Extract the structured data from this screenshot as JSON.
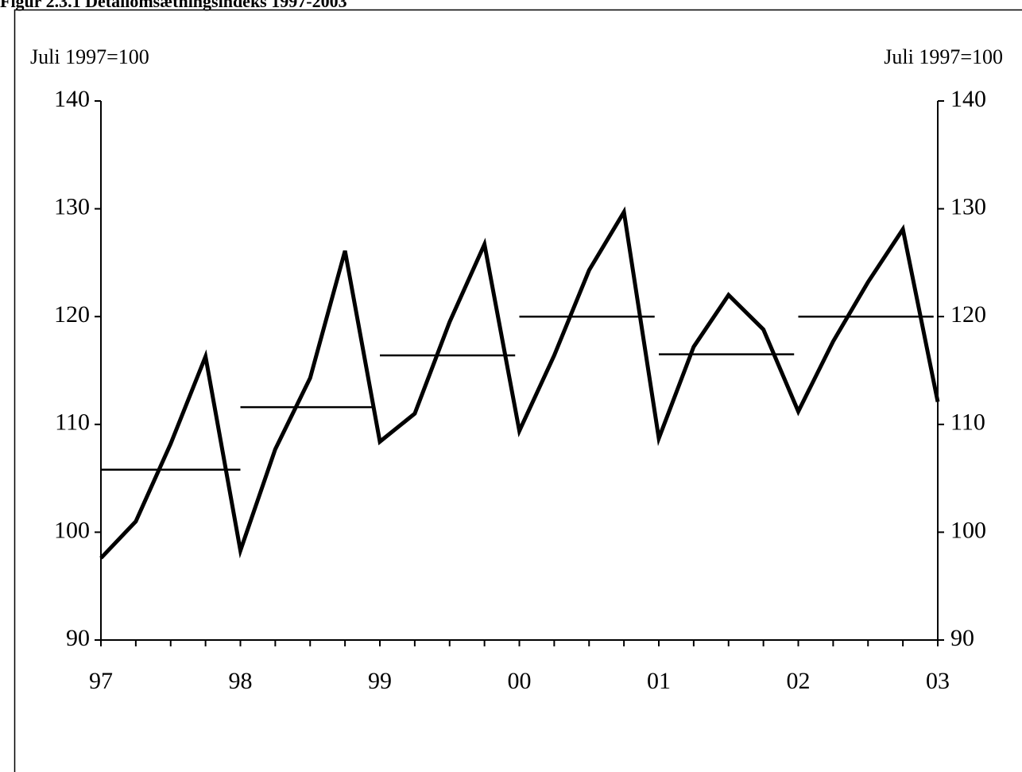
{
  "chart_data": {
    "type": "line",
    "title": "Figur 2.3.1 Detailomsætningsindeks 1997-2003",
    "y_label": "Juli 1997=100",
    "y2_label": "Juli 1997=100",
    "x": [
      1997,
      1997.25,
      1997.5,
      1997.75,
      1998,
      1998.25,
      1998.5,
      1998.75,
      1999,
      1999.25,
      1999.5,
      1999.75,
      2000,
      2000.25,
      2000.5,
      2000.75,
      2001,
      2001.25,
      2001.5,
      2001.75,
      2002,
      2002.25,
      2002.5,
      2002.75,
      2003
    ],
    "series": [
      {
        "color": "#000000",
        "values": [
          97.6,
          101.0,
          108.2,
          116.3,
          98.3,
          107.7,
          114.3,
          126.1,
          108.4,
          111.0,
          119.5,
          126.7,
          109.4,
          116.4,
          124.3,
          129.7,
          108.7,
          117.2,
          122.0,
          118.8,
          111.2,
          117.7,
          123.2,
          128.1,
          112.1
        ]
      }
    ],
    "segments": {
      "color": "#000000",
      "starts": [
        1997,
        1998,
        1999,
        2000,
        2001,
        2002
      ],
      "ends": [
        1998,
        1998.95,
        1999.97,
        2000.97,
        2001.97,
        2002.97
      ],
      "values": [
        105.8,
        111.6,
        116.4,
        120.0,
        116.5,
        120.0
      ]
    },
    "xlim": [
      1997,
      2003
    ],
    "xticks": [
      {
        "value": 1997,
        "label": "97"
      },
      {
        "value": 1998,
        "label": "98"
      },
      {
        "value": 1999,
        "label": "99"
      },
      {
        "value": 2000,
        "label": "00"
      },
      {
        "value": 2001,
        "label": "01"
      },
      {
        "value": 2002,
        "label": "02"
      },
      {
        "value": 2003,
        "label": "03"
      }
    ],
    "x_minor_per_major": 4,
    "ylim": [
      90,
      140
    ],
    "yticks": [
      90,
      100,
      110,
      120,
      130,
      140
    ],
    "y2lim": [
      90,
      140
    ],
    "y2ticks": [
      90,
      100,
      110,
      120,
      130,
      140
    ]
  }
}
